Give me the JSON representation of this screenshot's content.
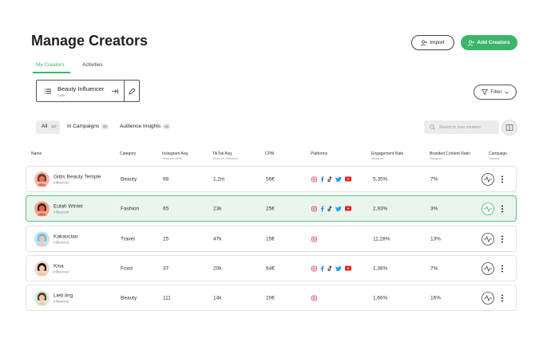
{
  "header": {
    "title": "Manage Creators",
    "import_button": "Import",
    "add_button": "Add Creators"
  },
  "tabs": [
    "My Creators",
    "Activities"
  ],
  "list_selector": {
    "name": "Beauty Influencer",
    "type": "Lists"
  },
  "filter_button": "Filter",
  "segments": [
    {
      "label": "All",
      "count": "117"
    },
    {
      "label": "In Campaigns",
      "count": "90"
    },
    {
      "label": "Audience Insights",
      "count": "45"
    }
  ],
  "search_placeholder": "Search in your creators",
  "table": {
    "columns": [
      {
        "title": "Name"
      },
      {
        "title": "Category"
      },
      {
        "title": "Instagram Avg.",
        "subtitle": "Views per Week"
      },
      {
        "title": "TikTok Avg.",
        "subtitle": "Views per Videopost"
      },
      {
        "title": "CPM"
      },
      {
        "title": "Platforms"
      },
      {
        "title": "Engagement Rate",
        "subtitle": "Instagram"
      },
      {
        "title": "Branded Content Ratio",
        "subtitle": "Instagram"
      },
      {
        "title": "Campaign",
        "subtitle": "Tracking"
      }
    ],
    "rows": [
      {
        "name": "Gittis Beauty Temple",
        "role": "Influencer",
        "category": "Beauty",
        "instagram_avg": "98",
        "tiktok_avg": "1,2m",
        "cpm": "56€",
        "engagement_rate": "5,35%",
        "branded_ratio": "7%"
      },
      {
        "name": "Eulah Winter",
        "role": "Influencer",
        "category": "Fashion",
        "instagram_avg": "65",
        "tiktok_avg": "23k",
        "cpm": "25€",
        "engagement_rate": "2,93%",
        "branded_ratio": "3%"
      },
      {
        "name": "Kakaociao",
        "role": "Influencer",
        "category": "Travel",
        "instagram_avg": "25",
        "tiktok_avg": "47k",
        "cpm": "15€",
        "engagement_rate": "11,28%",
        "branded_ratio": "13%"
      },
      {
        "name": "Kisa",
        "role": "Influencer",
        "category": "Food",
        "instagram_avg": "37",
        "tiktok_avg": "20k",
        "cpm": "64€",
        "engagement_rate": "1,38%",
        "branded_ratio": "7%"
      },
      {
        "name": "Lieb.ling",
        "role": "Influencer",
        "category": "Beauty",
        "instagram_avg": "111",
        "tiktok_avg": "14k",
        "cpm": "20€",
        "engagement_rate": "1,66%",
        "branded_ratio": "16%"
      }
    ]
  }
}
